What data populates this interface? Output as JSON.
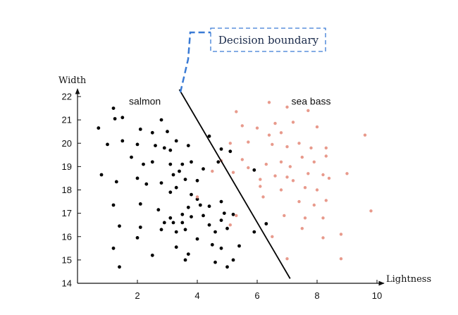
{
  "chart_data": {
    "type": "scatter",
    "xlabel": "Lightness",
    "ylabel": "Width",
    "xlim": [
      0,
      10
    ],
    "ylim": [
      14,
      22
    ],
    "x_ticks": [
      2,
      4,
      6,
      8,
      10
    ],
    "y_ticks": [
      14,
      15,
      16,
      17,
      18,
      19,
      20,
      21,
      22
    ],
    "grid": false,
    "region_labels": {
      "salmon": "salmon",
      "sea_bass": "sea bass"
    },
    "annotation": {
      "text": "Decision boundary"
    },
    "decision_boundary": {
      "from": [
        3.4,
        22.3
      ],
      "to": [
        7.1,
        14.2
      ]
    },
    "colors": {
      "salmon": "#000000",
      "sea_bass": "#e89a8c",
      "boundary": "#000000",
      "callout": "#3a7bd5"
    },
    "series": [
      {
        "name": "salmon",
        "points": [
          [
            1.2,
            21.5
          ],
          [
            1.5,
            21.1
          ],
          [
            1.25,
            21.05
          ],
          [
            0.7,
            20.65
          ],
          [
            1.0,
            19.95
          ],
          [
            1.5,
            20.1
          ],
          [
            2.1,
            20.6
          ],
          [
            2.0,
            19.95
          ],
          [
            1.8,
            19.4
          ],
          [
            2.2,
            19.1
          ],
          [
            2.8,
            21.0
          ],
          [
            2.5,
            20.45
          ],
          [
            3.0,
            20.5
          ],
          [
            2.6,
            19.9
          ],
          [
            2.9,
            19.8
          ],
          [
            3.3,
            20.1
          ],
          [
            3.1,
            19.7
          ],
          [
            3.7,
            19.9
          ],
          [
            2.5,
            19.2
          ],
          [
            3.1,
            19.1
          ],
          [
            3.5,
            19.1
          ],
          [
            3.8,
            19.2
          ],
          [
            0.8,
            18.65
          ],
          [
            1.3,
            18.35
          ],
          [
            2.0,
            18.5
          ],
          [
            2.3,
            18.25
          ],
          [
            2.8,
            18.3
          ],
          [
            3.2,
            18.65
          ],
          [
            3.4,
            18.8
          ],
          [
            3.6,
            18.45
          ],
          [
            4.0,
            18.4
          ],
          [
            4.2,
            18.9
          ],
          [
            3.3,
            18.1
          ],
          [
            3.1,
            17.9
          ],
          [
            3.8,
            17.8
          ],
          [
            1.2,
            17.35
          ],
          [
            2.1,
            17.4
          ],
          [
            2.7,
            17.15
          ],
          [
            3.1,
            16.8
          ],
          [
            3.5,
            16.95
          ],
          [
            3.8,
            16.85
          ],
          [
            3.7,
            17.25
          ],
          [
            4.0,
            17.6
          ],
          [
            4.1,
            17.35
          ],
          [
            4.2,
            16.9
          ],
          [
            2.9,
            16.6
          ],
          [
            3.2,
            16.6
          ],
          [
            3.5,
            16.6
          ],
          [
            3.6,
            16.3
          ],
          [
            1.4,
            16.45
          ],
          [
            2.1,
            16.4
          ],
          [
            2.8,
            16.3
          ],
          [
            3.3,
            16.2
          ],
          [
            4.4,
            16.5
          ],
          [
            4.6,
            16.2
          ],
          [
            4.0,
            15.9
          ],
          [
            2.0,
            15.95
          ],
          [
            1.2,
            15.5
          ],
          [
            2.5,
            15.2
          ],
          [
            3.3,
            15.55
          ],
          [
            3.7,
            15.25
          ],
          [
            3.6,
            15.0
          ],
          [
            4.5,
            15.65
          ],
          [
            4.8,
            15.5
          ],
          [
            1.4,
            14.7
          ],
          [
            4.6,
            14.9
          ],
          [
            5.2,
            15.0
          ],
          [
            5.0,
            14.7
          ],
          [
            4.8,
            16.7
          ],
          [
            5.0,
            16.35
          ],
          [
            4.9,
            17.0
          ],
          [
            4.8,
            17.5
          ],
          [
            5.2,
            16.95
          ],
          [
            4.4,
            20.3
          ],
          [
            4.7,
            19.2
          ],
          [
            4.8,
            19.75
          ],
          [
            5.1,
            19.65
          ],
          [
            5.9,
            18.85
          ],
          [
            5.9,
            16.2
          ],
          [
            6.3,
            16.55
          ],
          [
            5.4,
            15.6
          ],
          [
            4.4,
            17.3
          ]
        ]
      },
      {
        "name": "sea bass",
        "points": [
          [
            5.3,
            21.35
          ],
          [
            6.4,
            21.75
          ],
          [
            7.0,
            21.55
          ],
          [
            7.7,
            21.4
          ],
          [
            5.5,
            20.75
          ],
          [
            6.0,
            20.65
          ],
          [
            6.6,
            20.85
          ],
          [
            7.2,
            20.9
          ],
          [
            8.0,
            20.7
          ],
          [
            9.6,
            20.35
          ],
          [
            6.4,
            20.35
          ],
          [
            6.8,
            20.45
          ],
          [
            5.1,
            20.0
          ],
          [
            5.7,
            20.05
          ],
          [
            6.5,
            19.95
          ],
          [
            7.0,
            19.85
          ],
          [
            7.4,
            20.0
          ],
          [
            7.8,
            19.8
          ],
          [
            8.3,
            19.8
          ],
          [
            4.8,
            19.25
          ],
          [
            5.5,
            19.3
          ],
          [
            6.3,
            19.1
          ],
          [
            6.8,
            19.2
          ],
          [
            7.1,
            19.0
          ],
          [
            7.5,
            19.4
          ],
          [
            7.9,
            19.2
          ],
          [
            8.3,
            19.45
          ],
          [
            4.5,
            18.8
          ],
          [
            5.2,
            18.75
          ],
          [
            5.7,
            18.95
          ],
          [
            6.1,
            18.45
          ],
          [
            6.6,
            18.6
          ],
          [
            7.0,
            18.55
          ],
          [
            7.7,
            18.7
          ],
          [
            8.2,
            18.65
          ],
          [
            8.4,
            18.5
          ],
          [
            9.0,
            18.7
          ],
          [
            6.1,
            18.15
          ],
          [
            6.8,
            18.0
          ],
          [
            7.2,
            18.4
          ],
          [
            7.6,
            18.1
          ],
          [
            8.0,
            18.0
          ],
          [
            4.0,
            17.7
          ],
          [
            6.2,
            17.7
          ],
          [
            7.4,
            17.5
          ],
          [
            7.9,
            17.35
          ],
          [
            8.3,
            17.55
          ],
          [
            9.8,
            17.1
          ],
          [
            6.9,
            16.9
          ],
          [
            7.6,
            16.8
          ],
          [
            8.2,
            16.8
          ],
          [
            7.5,
            16.35
          ],
          [
            8.8,
            16.1
          ],
          [
            6.5,
            16.0
          ],
          [
            8.2,
            15.95
          ],
          [
            7.0,
            15.05
          ],
          [
            8.8,
            15.05
          ],
          [
            5.3,
            16.9
          ],
          [
            5.1,
            16.5
          ]
        ]
      }
    ]
  }
}
